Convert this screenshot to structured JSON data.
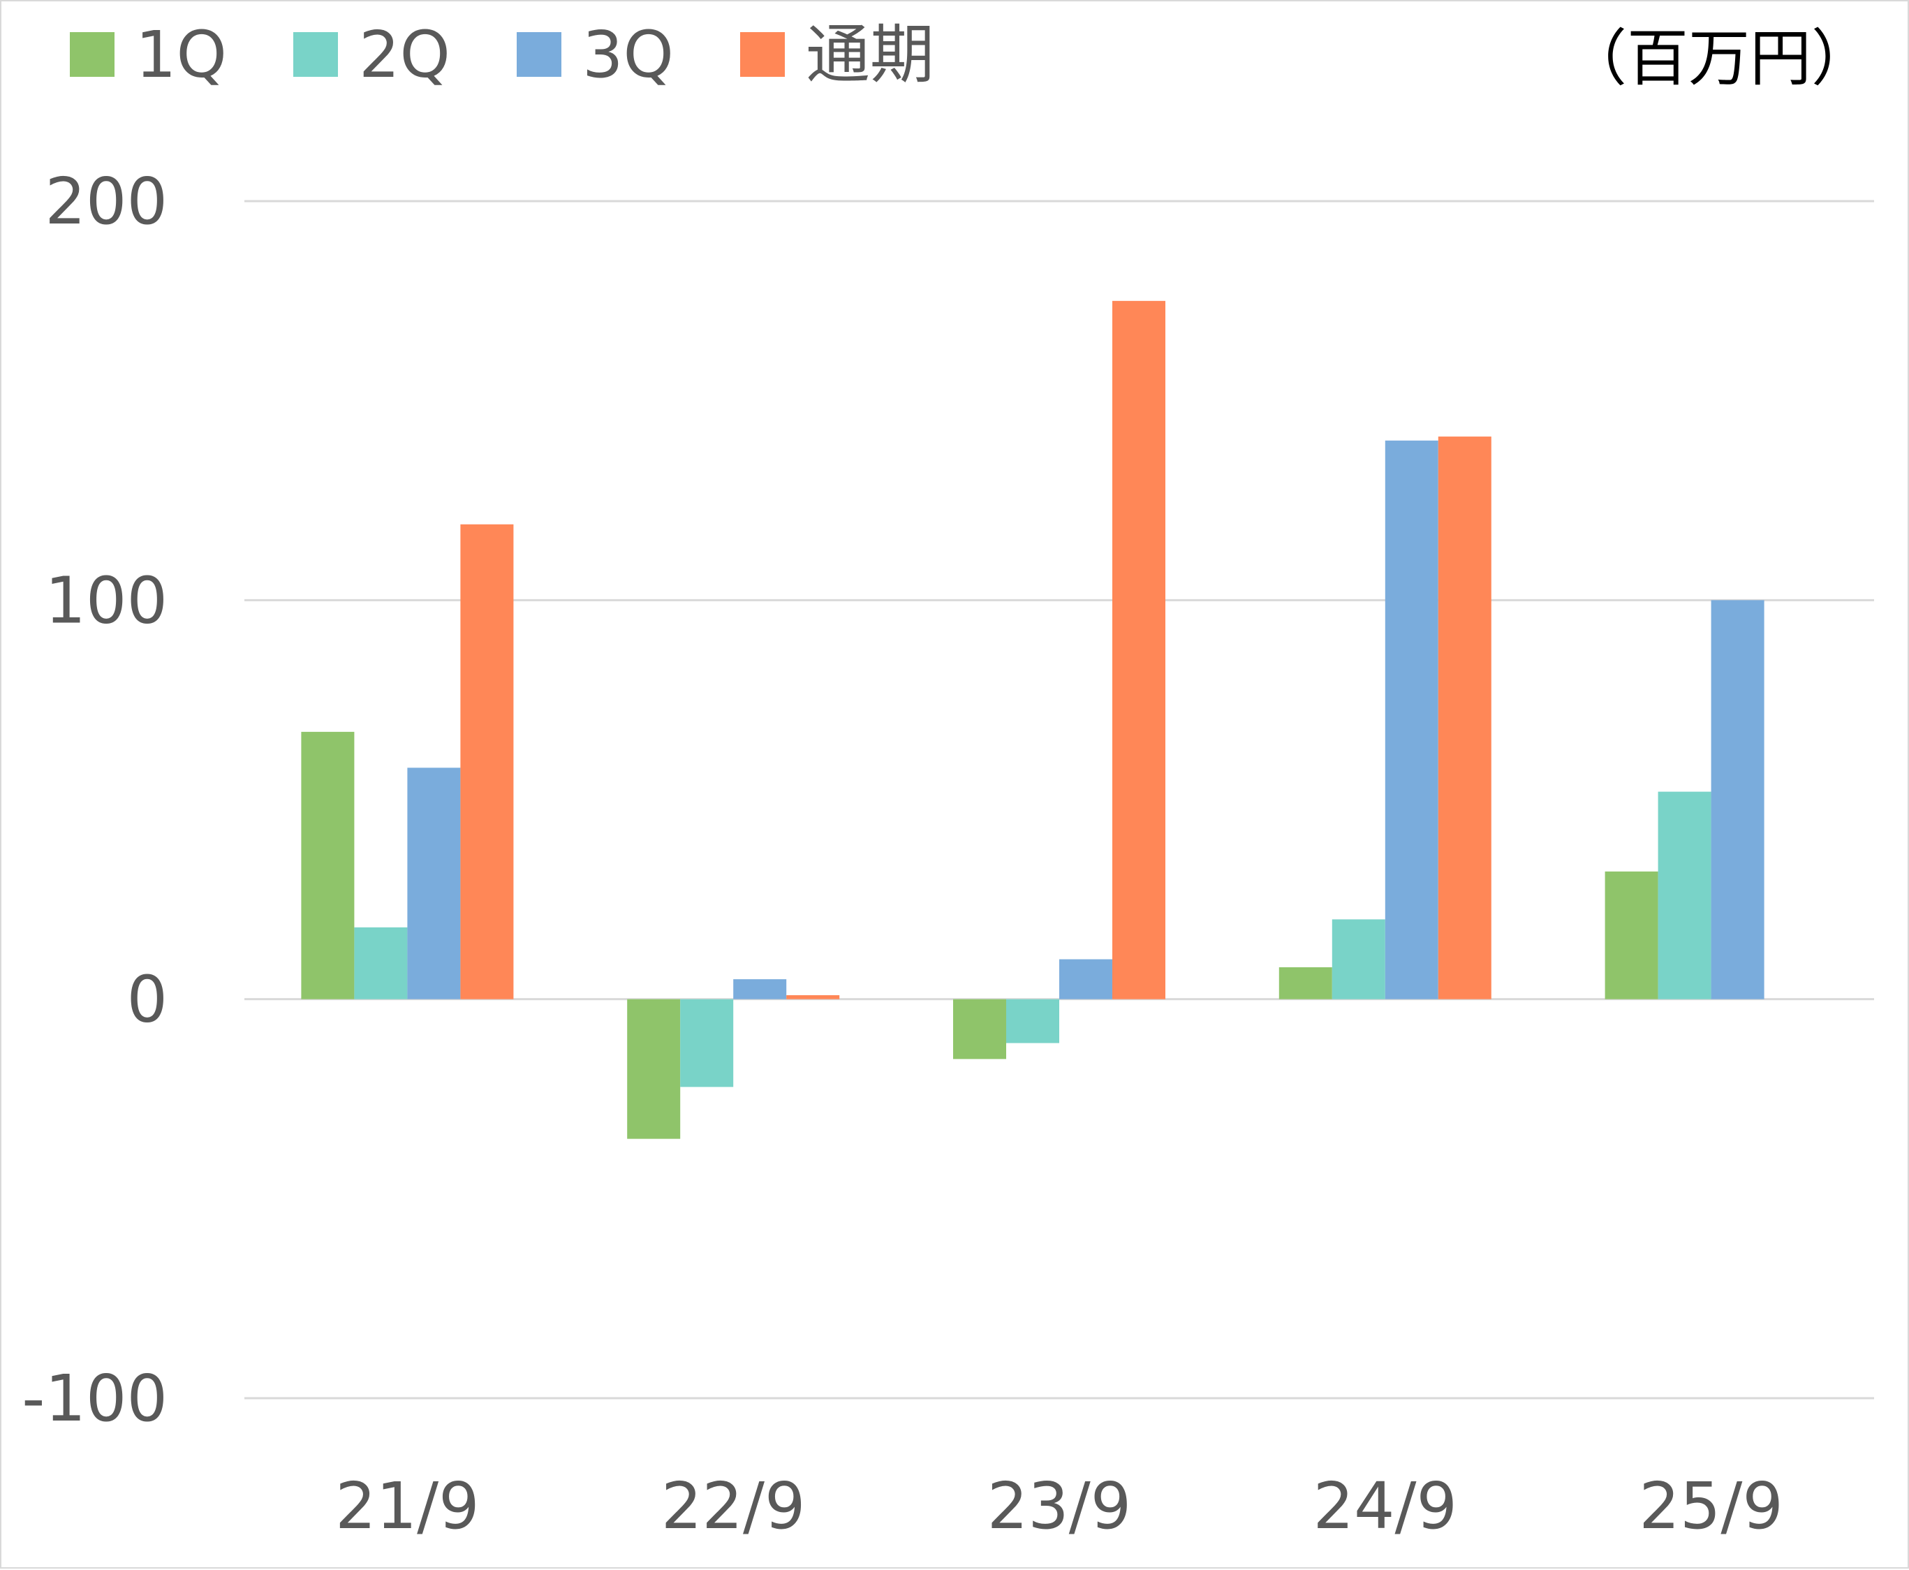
{
  "chart_data": {
    "type": "bar",
    "unit_label": "（百万円）",
    "categories": [
      "21/9",
      "22/9",
      "23/9",
      "24/9",
      "25/9"
    ],
    "series": [
      {
        "name": "1Q",
        "color": "#8fc46a",
        "values": [
          67,
          -35,
          -15,
          8,
          32
        ]
      },
      {
        "name": "2Q",
        "color": "#79d3c8",
        "values": [
          18,
          -22,
          -11,
          20,
          52
        ]
      },
      {
        "name": "3Q",
        "color": "#7aacdc",
        "values": [
          58,
          5,
          10,
          140,
          100
        ]
      },
      {
        "name": "通期",
        "color": "#ff8757",
        "values": [
          119,
          1,
          175,
          141,
          null
        ]
      }
    ],
    "y_ticks": [
      "200",
      "100",
      "0",
      "-100"
    ],
    "ylim": [
      -100,
      200
    ],
    "grid": true,
    "legend_position": "top-left"
  }
}
